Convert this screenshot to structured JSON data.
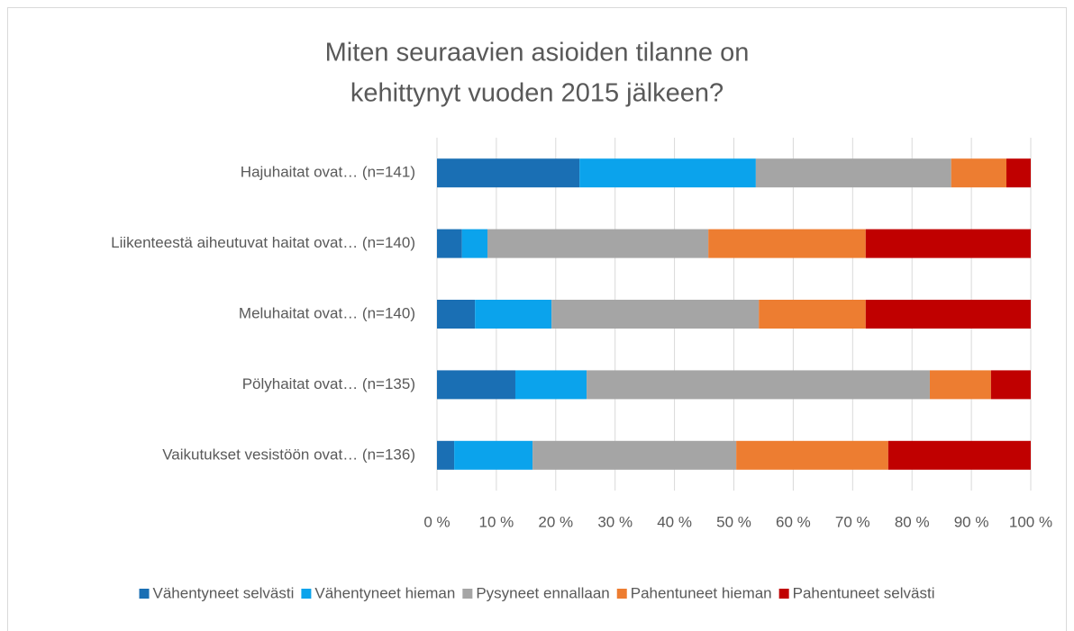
{
  "chart_data": {
    "type": "stacked_bar_horizontal",
    "title": [
      "Miten seuraavien asioiden tilanne on",
      "kehittynyt vuoden 2015 jälkeen?"
    ],
    "categories": [
      "Hajuhaitat ovat… (n=141)",
      "Liikenteestä aiheutuvat haitat ovat… (n=140)",
      "Meluhaitat ovat… (n=140)",
      "Pölyhaitat ovat… (n=135)",
      "Vaikutukset vesistöön ovat… (n=136)"
    ],
    "series": [
      {
        "name": "Vähentyneet selvästi",
        "color": "#1a6fb4",
        "values": [
          24.0,
          4.2,
          6.4,
          13.2,
          2.9
        ]
      },
      {
        "name": "Vähentyneet hieman",
        "color": "#0ba3ec",
        "values": [
          29.7,
          4.3,
          12.9,
          12.0,
          13.2
        ]
      },
      {
        "name": "Pysyneet ennallaan",
        "color": "#a5a5a5",
        "values": [
          32.9,
          37.2,
          34.9,
          57.8,
          34.3
        ]
      },
      {
        "name": "Pahentuneet hieman",
        "color": "#ed7d31",
        "values": [
          9.3,
          26.5,
          18.0,
          10.3,
          25.6
        ]
      },
      {
        "name": "Pahentuneet selvästi",
        "color": "#c00000",
        "values": [
          4.1,
          27.8,
          27.8,
          6.7,
          24.0
        ]
      }
    ],
    "xlim": [
      0,
      100
    ],
    "xticks": [
      {
        "value": 0,
        "label": "0 %"
      },
      {
        "value": 10,
        "label": "10 %"
      },
      {
        "value": 20,
        "label": "20 %"
      },
      {
        "value": 30,
        "label": "30 %"
      },
      {
        "value": 40,
        "label": "40 %"
      },
      {
        "value": 50,
        "label": "50 %"
      },
      {
        "value": 60,
        "label": "60 %"
      },
      {
        "value": 70,
        "label": "70 %"
      },
      {
        "value": 80,
        "label": "80 %"
      },
      {
        "value": 90,
        "label": "90 %"
      },
      {
        "value": 100,
        "label": "100 %"
      }
    ],
    "grid": true,
    "legend": "bottom"
  }
}
